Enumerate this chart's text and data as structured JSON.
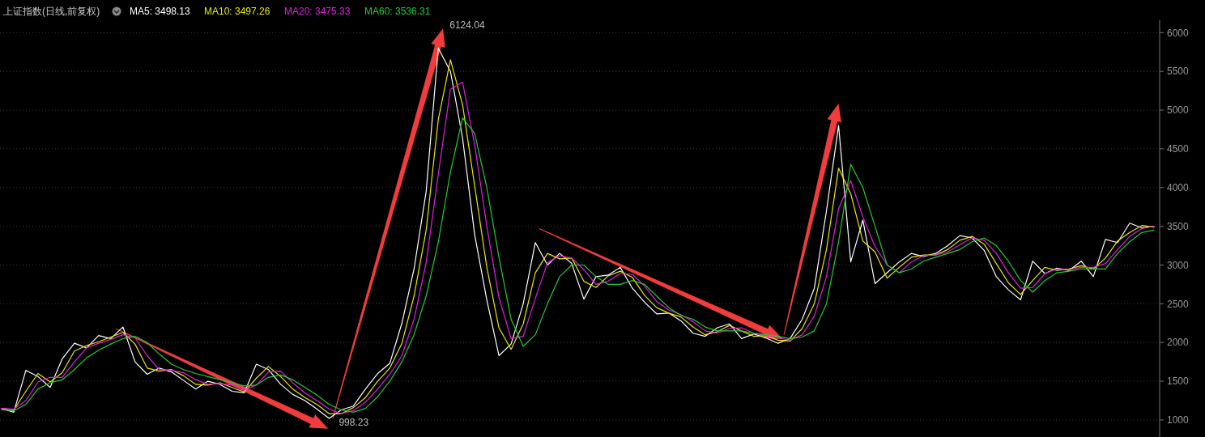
{
  "chart_data": {
    "type": "line",
    "title": "上证指数(日线,前复权)",
    "categories": [
      null,
      null,
      null,
      null,
      null,
      null,
      null,
      null,
      null,
      null,
      null,
      null,
      null,
      null,
      null,
      null,
      null,
      null,
      null,
      null,
      null,
      null,
      null,
      null,
      null,
      null,
      null,
      null,
      null,
      null,
      null,
      null,
      null,
      null,
      null,
      null,
      null,
      null,
      null,
      null,
      null,
      null,
      null,
      null,
      null,
      null,
      null,
      null,
      null,
      null,
      null,
      null,
      null,
      null,
      null,
      null,
      null,
      null,
      null,
      null,
      null,
      null,
      null,
      null,
      null,
      null,
      null,
      null,
      null,
      null,
      null,
      null,
      null,
      null,
      null,
      null,
      null,
      null,
      null,
      null,
      null,
      null,
      null,
      null,
      null,
      null,
      null,
      null,
      null,
      null,
      null,
      null,
      null,
      null,
      null,
      null
    ],
    "series": [
      {
        "name": "MA5: 3498.13",
        "color": "#ffffff",
        "values": [
          1150,
          1100,
          1640,
          1560,
          1420,
          1790,
          1990,
          1930,
          2090,
          2050,
          2200,
          1750,
          1590,
          1670,
          1620,
          1510,
          1400,
          1500,
          1460,
          1370,
          1350,
          1720,
          1650,
          1460,
          1330,
          1250,
          1140,
          1020,
          1130,
          1180,
          1400,
          1600,
          1730,
          2250,
          2950,
          3950,
          5800,
          5500,
          4640,
          3390,
          2550,
          1830,
          1980,
          2500,
          3290,
          3000,
          3150,
          3020,
          2560,
          2850,
          2870,
          2970,
          2700,
          2520,
          2370,
          2380,
          2280,
          2120,
          2080,
          2190,
          2240,
          2050,
          2110,
          2060,
          1990,
          2050,
          2300,
          2700,
          3700,
          4800,
          3040,
          3580,
          2760,
          2900,
          3040,
          3150,
          3110,
          3150,
          3250,
          3380,
          3350,
          3190,
          2850,
          2680,
          2550,
          3050,
          2890,
          2960,
          2930,
          3050,
          2850,
          3330,
          3290,
          3540,
          3480,
          3500
        ]
      },
      {
        "name": "MA10: 3497.26",
        "color": "#e8e800",
        "values": [
          1150,
          1130,
          1370,
          1600,
          1490,
          1610,
          1890,
          1960,
          2010,
          2070,
          2130,
          1980,
          1670,
          1630,
          1650,
          1570,
          1460,
          1450,
          1480,
          1420,
          1360,
          1540,
          1690,
          1560,
          1400,
          1290,
          1200,
          1080,
          1080,
          1160,
          1290,
          1500,
          1670,
          1990,
          2600,
          3450,
          4880,
          5650,
          5070,
          4020,
          2970,
          2190,
          1910,
          2240,
          2900,
          3150,
          3080,
          3090,
          2790,
          2710,
          2860,
          2920,
          2840,
          2610,
          2450,
          2380,
          2330,
          2200,
          2100,
          2140,
          2220,
          2150,
          2080,
          2090,
          2030,
          2020,
          2180,
          2500,
          3200,
          4250,
          3920,
          3310,
          3170,
          2830,
          2970,
          3100,
          3130,
          3130,
          3200,
          3320,
          3370,
          3270,
          3020,
          2770,
          2620,
          2800,
          2970,
          2930,
          2950,
          2990,
          2950,
          3090,
          3310,
          3420,
          3510,
          3490
        ]
      },
      {
        "name": "MA20: 3475.33",
        "color": "#e020e0",
        "values": [
          1150,
          1140,
          1250,
          1490,
          1550,
          1550,
          1750,
          1930,
          1990,
          2040,
          2100,
          2060,
          1830,
          1650,
          1640,
          1610,
          1520,
          1460,
          1470,
          1450,
          1390,
          1450,
          1620,
          1630,
          1480,
          1350,
          1250,
          1140,
          1080,
          1120,
          1230,
          1400,
          1590,
          1830,
          2300,
          3030,
          4170,
          5270,
          5360,
          4550,
          3500,
          2580,
          2050,
          2080,
          2570,
          3030,
          3120,
          3090,
          2940,
          2750,
          2790,
          2890,
          2880,
          2730,
          2530,
          2420,
          2360,
          2270,
          2150,
          2120,
          2180,
          2190,
          2120,
          2090,
          2060,
          2030,
          2100,
          2340,
          2850,
          3730,
          4090,
          3620,
          3240,
          3000,
          2900,
          3040,
          3120,
          3130,
          3170,
          3260,
          3350,
          3320,
          3150,
          2900,
          2700,
          2710,
          2890,
          2950,
          2940,
          2970,
          2970,
          3020,
          3200,
          3370,
          3470,
          3500
        ]
      },
      {
        "name": "MA60: 3536.31",
        "color": "#22cc33",
        "values": [
          1130,
          1120,
          1200,
          1400,
          1480,
          1520,
          1650,
          1800,
          1900,
          1980,
          2050,
          2080,
          2000,
          1850,
          1720,
          1650,
          1600,
          1560,
          1520,
          1480,
          1440,
          1450,
          1550,
          1580,
          1520,
          1420,
          1320,
          1200,
          1130,
          1100,
          1150,
          1300,
          1500,
          1750,
          2100,
          2600,
          3300,
          4200,
          4900,
          4700,
          4000,
          3100,
          2300,
          1950,
          2100,
          2500,
          2850,
          3000,
          3000,
          2850,
          2750,
          2750,
          2800,
          2750,
          2600,
          2450,
          2350,
          2300,
          2200,
          2150,
          2150,
          2150,
          2120,
          2100,
          2080,
          2050,
          2070,
          2150,
          2500,
          3300,
          4300,
          4000,
          3500,
          3000,
          2900,
          2950,
          3050,
          3100,
          3150,
          3200,
          3300,
          3350,
          3250,
          3050,
          2800,
          2650,
          2800,
          2900,
          2920,
          2950,
          2950,
          2950,
          3150,
          3300,
          3420,
          3450
        ]
      }
    ],
    "annotations": [
      "6124.04",
      "998.23"
    ],
    "ylim": [
      780,
      6160
    ],
    "yticks": [
      1000,
      1500,
      2000,
      2500,
      3000,
      3500,
      4000,
      4500,
      5000,
      5500,
      6000
    ],
    "grid": "y",
    "legend": "top left",
    "tick_labels": "y",
    "line_style": "solid",
    "marker": "none"
  }
}
